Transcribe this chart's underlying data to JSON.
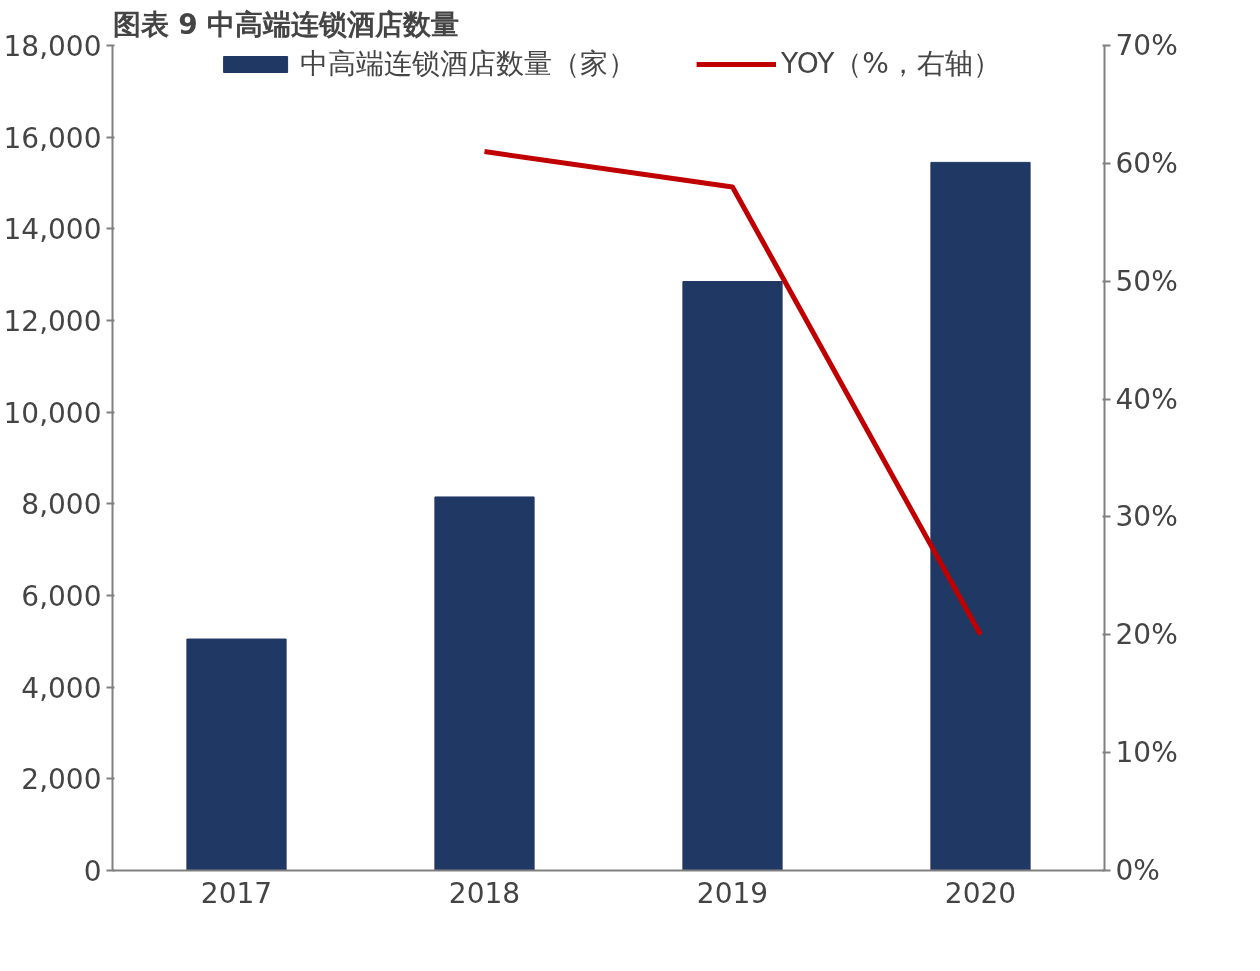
{
  "chart_data": {
    "type": "bar",
    "title": "图表 9  中高端连锁酒店数量",
    "categories": [
      "2017",
      "2018",
      "2019",
      "2020"
    ],
    "series": [
      {
        "name": "中高端连锁酒店数量（家）",
        "color": "#203864",
        "values": [
          5050,
          8150,
          12850,
          15450
        ]
      },
      {
        "name": "YOY（%，右轴）",
        "type": "line",
        "axis": "y2",
        "color": "#c00000",
        "values": [
          null,
          61,
          58,
          20
        ]
      }
    ],
    "ylim": [
      0,
      18000
    ],
    "yticks": [
      {
        "value": 0,
        "label": "0"
      },
      {
        "value": 2000,
        "label": "2,000"
      },
      {
        "value": 4000,
        "label": "4,000"
      },
      {
        "value": 6000,
        "label": "6,000"
      },
      {
        "value": 8000,
        "label": "8,000"
      },
      {
        "value": 10000,
        "label": "10,000"
      },
      {
        "value": 12000,
        "label": "12,000"
      },
      {
        "value": 14000,
        "label": "14,000"
      },
      {
        "value": 16000,
        "label": "16,000"
      },
      {
        "value": 18000,
        "label": "18,000"
      }
    ],
    "y2lim": [
      0,
      70
    ],
    "y2ticks": [
      {
        "value": 0,
        "label": "0%"
      },
      {
        "value": 10,
        "label": "10%"
      },
      {
        "value": 20,
        "label": "20%"
      },
      {
        "value": 30,
        "label": "30%"
      },
      {
        "value": 40,
        "label": "40%"
      },
      {
        "value": 50,
        "label": "50%"
      },
      {
        "value": 60,
        "label": "60%"
      },
      {
        "value": 70,
        "label": "70%"
      }
    ],
    "grid": false,
    "legend": "top"
  }
}
